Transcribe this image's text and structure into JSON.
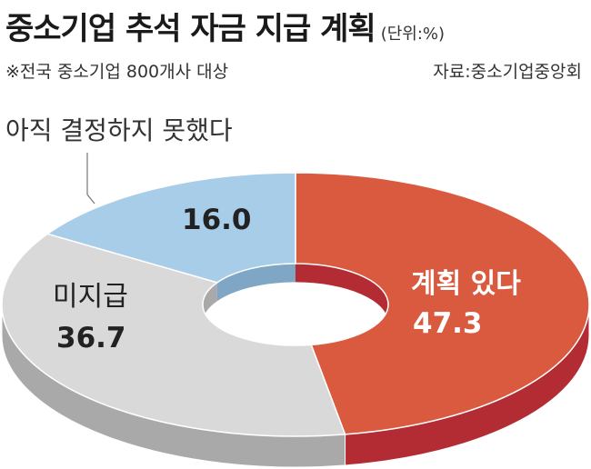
{
  "chart_data": {
    "type": "pie",
    "title": "중소기업 추석 자금 지급 계획",
    "unit": "(단위:%)",
    "note": "※전국 중소기업 800개사 대상",
    "source": "자료:중소기업중앙회",
    "slices": [
      {
        "label": "계획 있다",
        "value": 47.3,
        "value_text": "47.3",
        "color": "#d95a3e",
        "side_color": "#b42c33"
      },
      {
        "label": "미지급",
        "value": 36.7,
        "value_text": "36.7",
        "color": "#d9d9d9",
        "side_color": "#a9a9a9"
      },
      {
        "label": "아직 결정하지 못했다",
        "value": 16.0,
        "value_text": "16.0",
        "color": "#a8cde9",
        "side_color": "#7fa6c4"
      }
    ]
  }
}
